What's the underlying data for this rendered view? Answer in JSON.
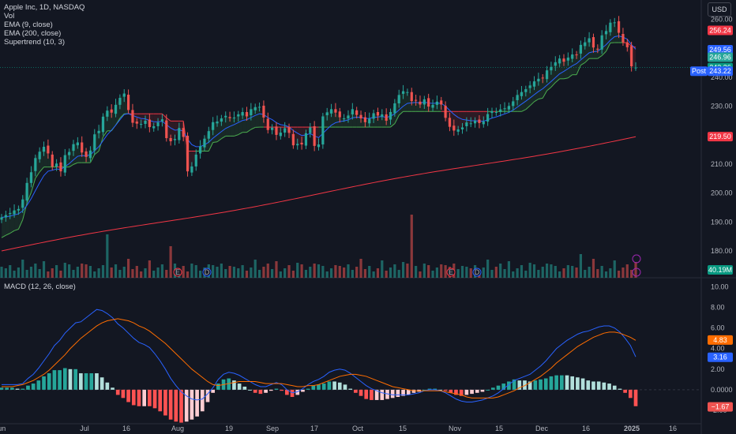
{
  "header": {
    "symbol_line": "Apple Inc, 1D, NASDAQ",
    "indicators": [
      "Vol",
      "EMA (9, close)",
      "EMA (200, close)",
      "Supertrend (10, 3)"
    ],
    "macd_label": "MACD (12, 26, close)",
    "currency_button": "USD"
  },
  "colors": {
    "background": "#131722",
    "up": "#26a69a",
    "down": "#ef5350",
    "ema9": "#2962ff",
    "ema200": "#f23645",
    "macd_line": "#2962ff",
    "signal_line": "#ff6d00",
    "supertrend_up": "#4caf50",
    "supertrend_down": "#f23645"
  },
  "chart_data": [
    {
      "type": "candlestick",
      "title": "Apple Inc, 1D, NASDAQ",
      "currency": "USD",
      "x_tick_labels": [
        "Jun",
        "Jul",
        "16",
        "Aug",
        "19",
        "Sep",
        "17",
        "Oct",
        "15",
        "Nov",
        "15",
        "Dec",
        "16",
        "2025",
        "16"
      ],
      "y_tick_labels": [
        "260.00",
        "250.00",
        "240.00",
        "230.00",
        "220.00",
        "210.00",
        "200.00",
        "190.00",
        "180.00"
      ],
      "ylim": [
        174,
        264
      ],
      "close_series": [
        191.6,
        192.4,
        193.1,
        194.0,
        194.5,
        197.8,
        203.5,
        207.2,
        212.1,
        214.3,
        216.0,
        213.7,
        209.1,
        210.2,
        207.5,
        213.1,
        214.2,
        216.9,
        217.5,
        214.0,
        212.5,
        214.7,
        220.3,
        221.5,
        226.4,
        228.5,
        227.8,
        230.5,
        232.9,
        234.4,
        228.7,
        224.3,
        224.0,
        223.9,
        225.0,
        222.8,
        223.1,
        224.4,
        225.5,
        219.0,
        217.9,
        218.7,
        222.5,
        219.4,
        207.5,
        209.2,
        213.3,
        216.2,
        218.8,
        221.4,
        224.5,
        224.7,
        225.8,
        226.7,
        225.9,
        226.1,
        227.2,
        228.0,
        226.5,
        229.0,
        229.7,
        229.8,
        226.1,
        221.8,
        222.6,
        220.1,
        220.9,
        222.4,
        220.8,
        216.5,
        217.0,
        216.8,
        220.7,
        222.7,
        216.3,
        216.8,
        226.5,
        227.9,
        229.0,
        227.8,
        226.2,
        225.8,
        226.8,
        229.0,
        227.0,
        225.8,
        224.5,
        225.7,
        227.6,
        226.8,
        227.2,
        225.0,
        228.0,
        231.0,
        233.9,
        235.2,
        234.9,
        231.8,
        232.0,
        230.6,
        232.4,
        229.9,
        230.5,
        231.6,
        230.6,
        226.0,
        222.9,
        221.6,
        222.0,
        222.7,
        224.4,
        224.1,
        225.0,
        224.2,
        224.7,
        227.3,
        228.3,
        228.0,
        228.9,
        229.3,
        230.1,
        231.7,
        233.9,
        234.9,
        235.9,
        237.2,
        238.6,
        239.5,
        239.8,
        242.4,
        243.6,
        245.2,
        246.5,
        245.4,
        246.8,
        247.9,
        247.8,
        251.2,
        252.1,
        253.5,
        250.3,
        249.6,
        254.5,
        256.0,
        258.9,
        259.0,
        255.4,
        252.1,
        250.4,
        243.8,
        243.4
      ],
      "y_axis_tags": [
        {
          "label": "256.24",
          "value": 256.24,
          "color": "#f23645"
        },
        {
          "label": "249.56",
          "value": 249.56,
          "color": "#2962ff"
        },
        {
          "label": "246.96",
          "value": 246.96,
          "color": "#26a69a"
        },
        {
          "label": "243.36",
          "value": 243.36,
          "color": "#089981"
        },
        {
          "label": "243.22",
          "value": 243.22,
          "color": "#2962ff",
          "prefix": "Post"
        },
        {
          "label": "219.50",
          "value": 219.5,
          "color": "#f23645"
        }
      ],
      "volume_tag": "40.19M",
      "event_markers": [
        "E",
        "D",
        "E",
        "D"
      ]
    },
    {
      "type": "line",
      "title": "MACD (12, 26, close)",
      "series": [
        {
          "values": [
            0.5,
            0.5,
            0.5,
            0.5,
            0.6,
            1.1,
            1.5,
            2.1,
            2.8,
            3.5,
            4.3,
            4.8,
            5.5,
            6.0,
            6.5,
            6.6,
            7.0,
            7.4,
            7.8,
            7.7,
            7.4,
            7.0,
            6.4,
            6.0,
            5.5,
            5.0,
            4.6,
            4.4,
            4.1,
            3.5,
            2.8,
            2.0,
            1.1,
            0.4,
            -0.2,
            -0.6,
            -0.9,
            -1.0,
            -0.9,
            -0.4,
            0.2,
            1.0,
            1.5,
            1.7,
            1.6,
            1.4,
            1.1,
            0.8,
            0.5,
            0.3,
            0.3,
            0.5,
            0.7,
            0.5,
            0.0,
            -0.3,
            -0.2,
            0.1,
            0.5,
            0.8,
            1.0,
            1.3,
            1.7,
            1.9,
            2.0,
            1.9,
            1.6,
            1.2,
            0.8,
            0.4,
            0.1,
            -0.1,
            -0.3,
            -0.4,
            -0.5,
            -0.5,
            -0.5,
            -0.5,
            -0.4,
            -0.3,
            -0.1,
            0.0,
            0.0,
            -0.1,
            -0.3,
            -0.6,
            -0.9,
            -1.1,
            -1.2,
            -1.2,
            -1.1,
            -1.0,
            -0.8,
            -0.6,
            -0.3,
            0.1,
            0.5,
            0.9,
            1.1,
            1.3,
            1.5,
            1.9,
            2.3,
            2.8,
            3.4,
            4.0,
            4.4,
            4.8,
            5.1,
            5.4,
            5.6,
            5.7,
            5.9,
            6.1,
            6.2,
            6.2,
            6.0,
            5.6,
            5.0,
            4.3,
            3.2
          ]
        },
        {
          "values": [
            0.3,
            0.3,
            0.3,
            0.4,
            0.5,
            0.7,
            0.9,
            1.2,
            1.5,
            1.9,
            2.4,
            2.9,
            3.4,
            4.0,
            4.5,
            5.0,
            5.4,
            5.8,
            6.2,
            6.5,
            6.7,
            6.8,
            6.9,
            6.8,
            6.7,
            6.5,
            6.2,
            6.0,
            5.7,
            5.3,
            4.9,
            4.5,
            4.0,
            3.5,
            3.0,
            2.5,
            2.0,
            1.6,
            1.2,
            0.8,
            0.5,
            0.4,
            0.5,
            0.6,
            0.7,
            0.8,
            0.8,
            0.8,
            0.8,
            0.7,
            0.6,
            0.6,
            0.6,
            0.6,
            0.5,
            0.4,
            0.3,
            0.3,
            0.4,
            0.4,
            0.5,
            0.7,
            0.9,
            1.1,
            1.3,
            1.4,
            1.5,
            1.5,
            1.4,
            1.3,
            1.1,
            0.9,
            0.7,
            0.5,
            0.3,
            0.2,
            0.1,
            0.0,
            -0.1,
            -0.1,
            -0.1,
            -0.1,
            -0.1,
            -0.1,
            -0.2,
            -0.3,
            -0.4,
            -0.5,
            -0.7,
            -0.8,
            -0.8,
            -0.8,
            -0.8,
            -0.8,
            -0.7,
            -0.5,
            -0.3,
            -0.1,
            0.2,
            0.4,
            0.7,
            1.0,
            1.3,
            1.7,
            2.1,
            2.6,
            3.0,
            3.4,
            3.8,
            4.2,
            4.5,
            4.8,
            5.1,
            5.3,
            5.5,
            5.6,
            5.6,
            5.5,
            5.3,
            5.1,
            4.8
          ]
        }
      ],
      "y_tick_labels": [
        "10.00",
        "8.00",
        "6.00",
        "4.00",
        "2.00",
        "0.0000",
        "-2.00"
      ],
      "ylim": [
        -3,
        10.5
      ],
      "value_tags": [
        {
          "label": "4.83",
          "value": 4.83,
          "color": "#ff6d00"
        },
        {
          "label": "3.16",
          "value": 3.16,
          "color": "#2962ff"
        },
        {
          "label": "−1.67",
          "value": -1.67,
          "color": "#ef5350"
        }
      ]
    }
  ]
}
